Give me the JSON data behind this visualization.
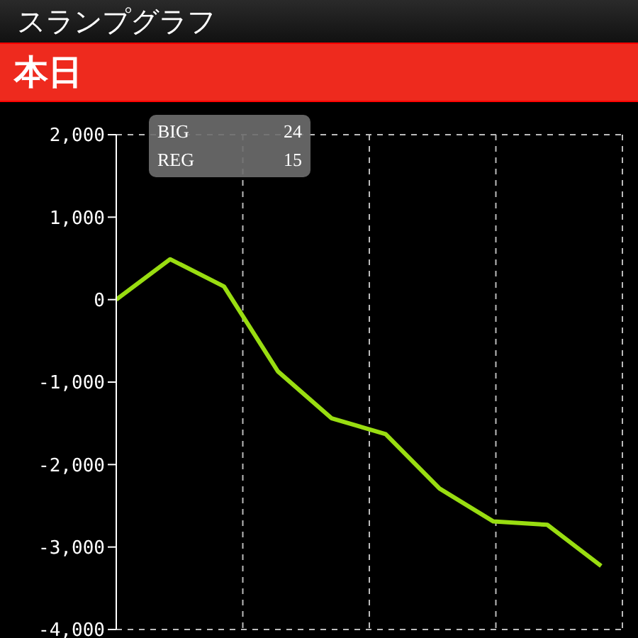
{
  "chart_data": {
    "type": "line",
    "title": "スランプグラフ",
    "subtitle": "本日",
    "annotations": [
      "BIG",
      "24",
      "REG",
      "15"
    ],
    "categories": [
      null,
      null,
      null,
      null,
      null,
      null,
      null,
      null,
      null,
      null
    ],
    "series": [
      {
        "color": "#99dd11",
        "values": [
          0,
          490,
          160,
          -870,
          -1440,
          -1630,
          -2290,
          -2690,
          -2730,
          -3230
        ]
      }
    ],
    "ylim": [
      -4000,
      2000
    ],
    "yticks": [
      {
        "value": -4000,
        "label": "-4,000"
      },
      {
        "value": -3000,
        "label": "-3,000"
      },
      {
        "value": -2000,
        "label": "-2,000"
      },
      {
        "value": -1000,
        "label": "-1,000"
      },
      0,
      {
        "value": 1000,
        "label": "1,000"
      },
      {
        "value": 2000,
        "label": "2,000"
      }
    ],
    "grid": true,
    "tick_labels": "y",
    "legend": false,
    "marker": "none",
    "line_style": "solid"
  }
}
